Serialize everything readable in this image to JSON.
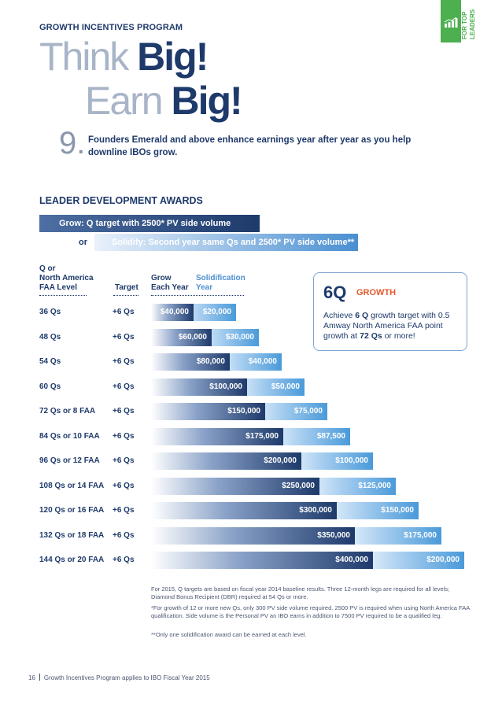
{
  "header": {
    "label": "GROWTH INCENTIVES PROGRAM",
    "tab_lines": [
      "FOR TOP",
      "LEADERS"
    ]
  },
  "title": {
    "line1_light": "Think ",
    "line1_bold": "Big!",
    "line2_light": "Earn ",
    "line2_bold": "Big!"
  },
  "item": {
    "number": "9.",
    "text": "Founders Emerald and above enhance earnings year after year as you help downline IBOs grow."
  },
  "section": {
    "title": "LEADER DEVELOPMENT AWARDS"
  },
  "legend": {
    "grow": "Grow: Q target with 2500* PV side volume",
    "or": "or",
    "solidify": "Solidify: Second year same Qs and 2500* PV side volume**"
  },
  "columns": {
    "level_line1": "Q or",
    "level_line2": "North America",
    "level_line3": "FAA Level",
    "target": "Target",
    "grow_line1": "Grow",
    "grow_line2": "Each Year",
    "solid_line1": "Solidification",
    "solid_line2": "Year"
  },
  "rows": [
    {
      "level": "36 Qs",
      "target": "+6 Qs",
      "grow": "$40,000",
      "solid": "$20,000"
    },
    {
      "level": "48 Qs",
      "target": "+6 Qs",
      "grow": "$60,000",
      "solid": "$30,000"
    },
    {
      "level": "54 Qs",
      "target": "+6 Qs",
      "grow": "$80,000",
      "solid": "$40,000"
    },
    {
      "level": "60 Qs",
      "target": "+6 Qs",
      "grow": "$100,000",
      "solid": "$50,000"
    },
    {
      "level": "72 Qs or 8 FAA",
      "target": "+6 Qs",
      "grow": "$150,000",
      "solid": "$75,000"
    },
    {
      "level": "84 Qs or 10 FAA",
      "target": "+6 Qs",
      "grow": "$175,000",
      "solid": "$87,500"
    },
    {
      "level": "96 Qs or 12 FAA",
      "target": "+6 Qs",
      "grow": "$200,000",
      "solid": "$100,000"
    },
    {
      "level": "108 Qs or 14 FAA",
      "target": "+6 Qs",
      "grow": "$250,000",
      "solid": "$125,000"
    },
    {
      "level": "120 Qs or 16 FAA",
      "target": "+6 Qs",
      "grow": "$300,000",
      "solid": "$150,000"
    },
    {
      "level": "132 Qs or 18 FAA",
      "target": "+6 Qs",
      "grow": "$350,000",
      "solid": "$175,000"
    },
    {
      "level": "144 Qs or 20 FAA",
      "target": "+6 Qs",
      "grow": "$400,000",
      "solid": "$200,000"
    }
  ],
  "callout": {
    "big": "6Q",
    "word": "GROWTH",
    "text_a": "Achieve ",
    "text_b": "6 Q",
    "text_c": " growth target with 0.5 Amway North America FAA point growth at ",
    "text_d": "72 Qs",
    "text_e": " or more!"
  },
  "notes": [
    "For 2015, Q targets are based on fiscal year 2014 baseline results. Three 12-month legs are required for all levels; Diamond Bonus Recipient (DBR) required at 54 Qs or more.",
    "*For growth of 12 or more new Qs, only 300 PV side volume required. 2500 PV is required when using North America FAA qualification. Side volume is the Personal PV an IBO earns in addition to 7500 PV required to be a qualified leg.",
    "**Only one solidification award can be earned at each level."
  ],
  "footer": {
    "page": "16",
    "text": "Growth Incentives Program applies to IBO Fiscal Year 2015"
  },
  "colors": {
    "navy": "#1e3a6b",
    "blue": "#4a9ad9",
    "green": "#4caf50",
    "orange": "#e65a2e"
  }
}
